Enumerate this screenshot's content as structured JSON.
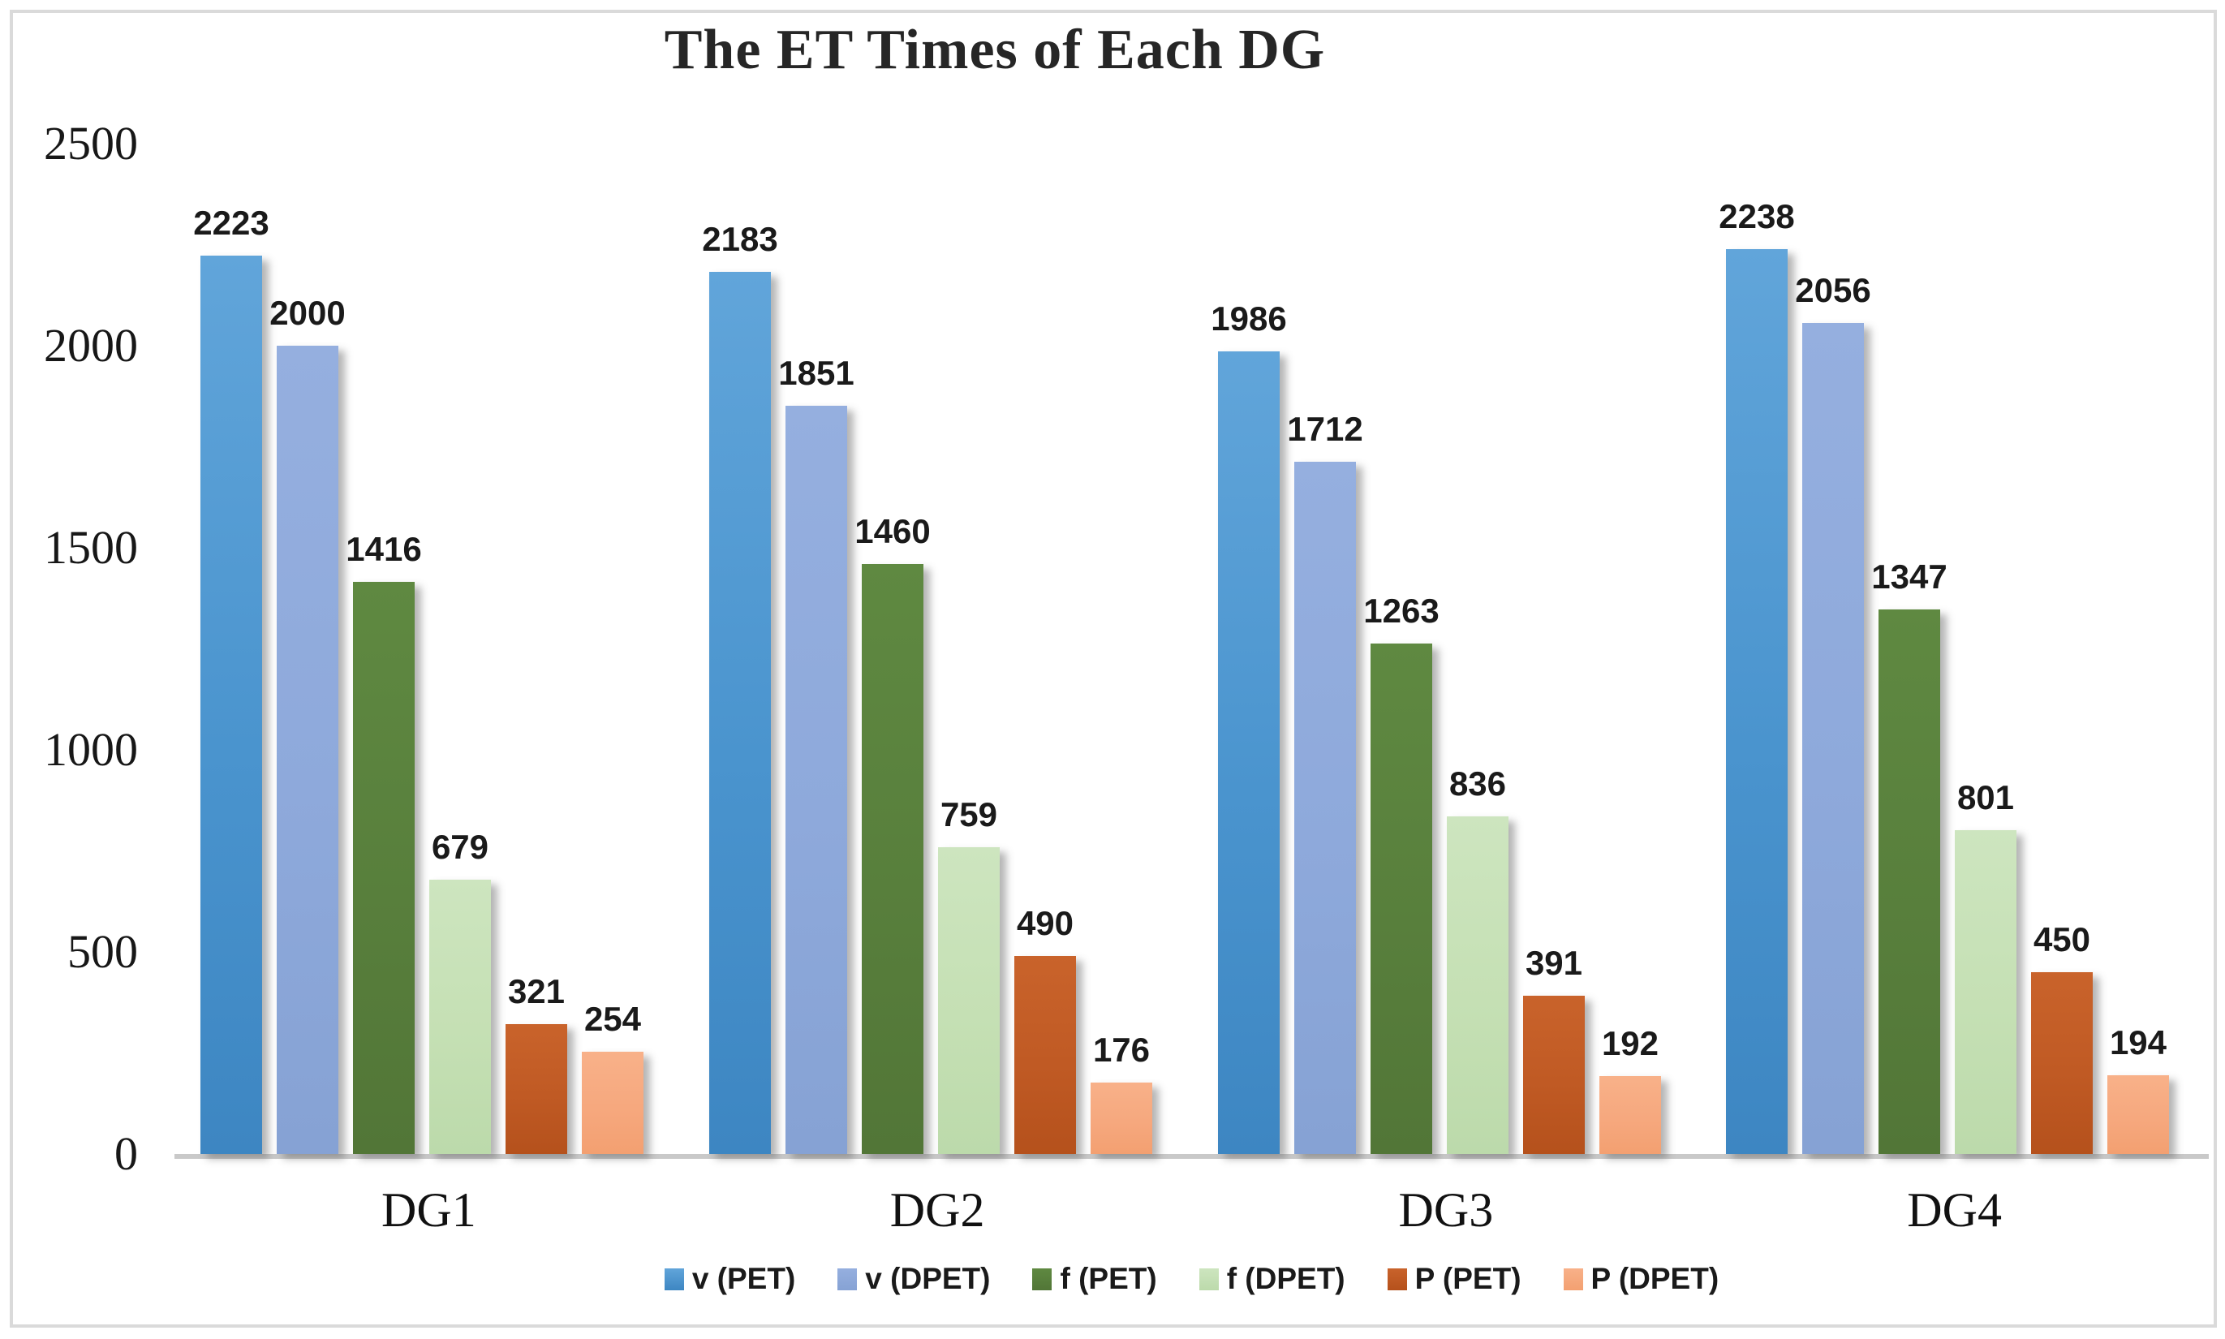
{
  "title": "The ET Times of Each DG",
  "chart_data": {
    "type": "bar",
    "title": "The ET Times of Each DG",
    "categories": [
      "DG1",
      "DG2",
      "DG3",
      "DG4"
    ],
    "series": [
      {
        "name": "v (PET)",
        "color": "#4a94ce",
        "color_top": "#61a5da",
        "color_bottom": "#3d86c2",
        "values": [
          2223,
          2183,
          1986,
          2238
        ]
      },
      {
        "name": "v (DPET)",
        "color": "#8ea9db",
        "color_top": "#95afdf",
        "color_bottom": "#86a2d4",
        "values": [
          2000,
          1851,
          1712,
          2056
        ]
      },
      {
        "name": "f (PET)",
        "color": "#587f3c",
        "color_top": "#5f8941",
        "color_bottom": "#527637",
        "values": [
          1416,
          1460,
          1263,
          1347
        ]
      },
      {
        "name": "f (DPET)",
        "color": "#c5e0b4",
        "color_top": "#cde5bf",
        "color_bottom": "#bcdaab",
        "values": [
          679,
          759,
          836,
          801
        ]
      },
      {
        "name": "P (PET)",
        "color": "#c05a24",
        "color_top": "#c9632b",
        "color_bottom": "#b5511c",
        "values": [
          321,
          490,
          391,
          450
        ]
      },
      {
        "name": "P (DPET)",
        "color": "#f6a87e",
        "color_top": "#f8b189",
        "color_bottom": "#f3a071",
        "values": [
          254,
          176,
          192,
          194
        ]
      }
    ],
    "y_axis": {
      "ticks": [
        2500,
        2000,
        1500,
        1000,
        500,
        0
      ],
      "min": 0,
      "max": 2500
    },
    "grid": false,
    "legend_position": "bottom",
    "background": "#ffffff",
    "border_color": "#dadada"
  }
}
